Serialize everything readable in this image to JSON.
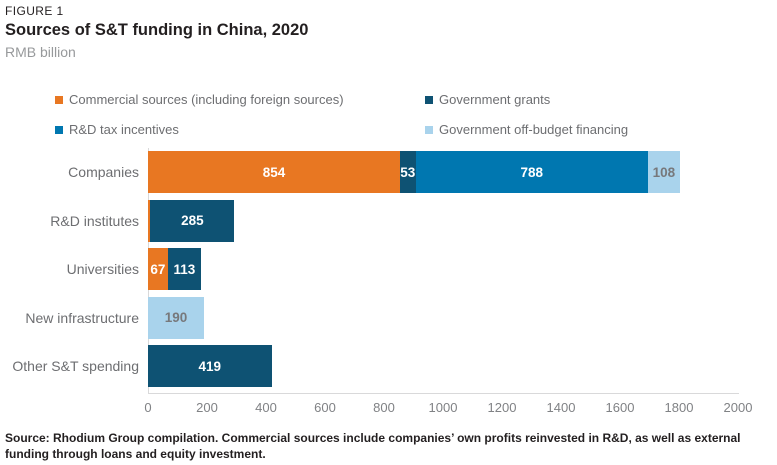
{
  "figure_label": "FIGURE 1",
  "source_note": "Source: Rhodium Group compilation. Commercial sources include companies’ own profits reinvested in R&D, as well as external funding through loans and equity investment.",
  "colors": {
    "orange": "#e87722",
    "dark_navy": "#0e5273",
    "blue": "#0077b0",
    "light_blue": "#a9d3ec",
    "gray_text": "#6d6e71",
    "axis_gray": "#d9d9da"
  },
  "chart_data": {
    "type": "bar",
    "orientation": "horizontal-stacked",
    "title": "Sources of S&T funding in China, 2020",
    "unit": "RMB billion",
    "categories": [
      "Companies",
      "R&D institutes",
      "Universities",
      "New infrastructure",
      "Other S&T spending"
    ],
    "series": [
      {
        "name": "Commercial sources (including foreign sources)",
        "color": "#e87722",
        "label_color": "#ffffff",
        "values": [
          854,
          8,
          67,
          0,
          0
        ]
      },
      {
        "name": "Government grants",
        "color": "#0e5273",
        "label_color": "#ffffff",
        "values": [
          53,
          285,
          113,
          0,
          419
        ]
      },
      {
        "name": "R&D tax incentives",
        "color": "#0077b0",
        "label_color": "#ffffff",
        "values": [
          788,
          0,
          0,
          0,
          0
        ]
      },
      {
        "name": "Government off-budget financing",
        "color": "#a9d3ec",
        "label_color": "#77787b",
        "values": [
          108,
          0,
          0,
          190,
          0
        ]
      }
    ],
    "xlim": [
      0,
      2000
    ],
    "xticks": [
      0,
      200,
      400,
      600,
      800,
      1000,
      1200,
      1400,
      1600,
      1800,
      2000
    ],
    "label_min_value": 40,
    "legend_position": "top",
    "grid": false
  }
}
